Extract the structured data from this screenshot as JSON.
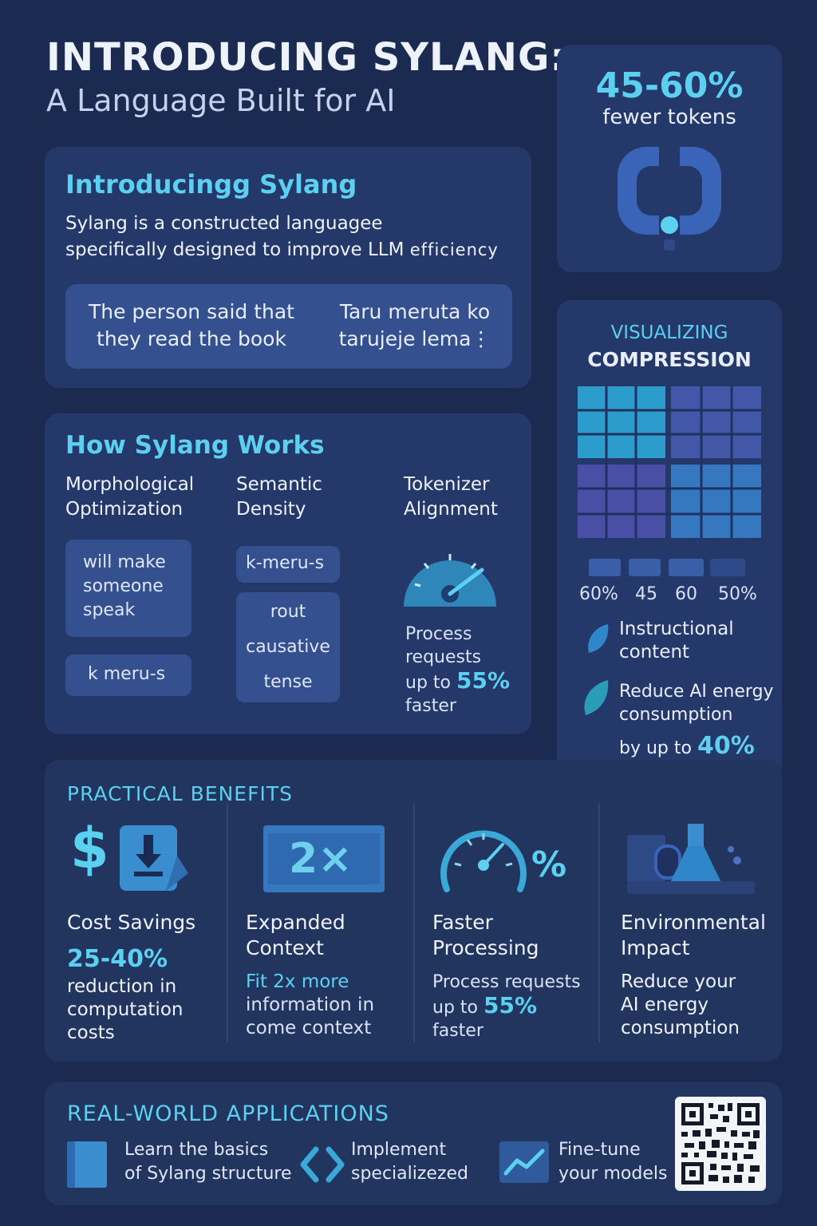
{
  "header": {
    "title": "INTRODUCING SYLANG:",
    "subtitle": "A Language Built for AI"
  },
  "intro": {
    "heading": "Introducingg Sylang",
    "desc_line1": "Sylang is a constructed languagee",
    "desc_line2": "specifically designed to improve LLM",
    "desc_word": "efficiency",
    "example_en_1": "The person said that",
    "example_en_2": "they read the book",
    "example_sy_1": "Taru meruta ko",
    "example_sy_2": "tarujeje lema⋮"
  },
  "tokens": {
    "value": "45-60%",
    "label": "fewer tokens"
  },
  "how": {
    "heading": "How Sylang Works",
    "col1": {
      "title1": "Morphological",
      "title2": "Optimization",
      "chip1_1": "will make",
      "chip1_2": "someone",
      "chip1_3": "speak",
      "chip2": "k meru-s"
    },
    "col2": {
      "title1": "Semantic",
      "title2": "Density",
      "chip1": "k-meru-s",
      "items": [
        "rout",
        "causative",
        "tense"
      ]
    },
    "col3": {
      "title1": "Tokenizer",
      "title2": "Alignment",
      "line1": "Process",
      "line2": "requests",
      "line3": "up to",
      "value": "55%",
      "line4": "faster"
    }
  },
  "visual": {
    "heading1": "VISUALIZING",
    "heading2": "COMPRESSION",
    "pcts": [
      "60%",
      "45",
      "60",
      "50%"
    ],
    "item1_1": "Instructional",
    "item1_2": "content",
    "item2_1": "Reduce AI energy",
    "item2_2": "consumption",
    "item2_3": "by up to",
    "item2_value": "40%"
  },
  "benefits": {
    "heading": "PRACTICAL BENEFITS",
    "cost": {
      "title": "Cost Savings",
      "value": "25-40%",
      "d1": "reduction in",
      "d2": "computation",
      "d3": "costs"
    },
    "context": {
      "title1": "Expanded",
      "title2": "Context",
      "icon_text": "2×",
      "d1": "Fit 2x more",
      "d2": "information in",
      "d3": "come context"
    },
    "faster": {
      "title1": "Faster",
      "title2": "Processing",
      "icon_text": "%",
      "d1": "Process requests",
      "d2": "up to",
      "value": "55%",
      "d3": "faster"
    },
    "env": {
      "title1": "Environmental",
      "title2": "Impact",
      "d1": "Reduce your",
      "d2": "AI energy",
      "d3": "consumption"
    }
  },
  "apps": {
    "heading": "REAL-WORLD APPLICATIONS",
    "a1_1": "Learn the basics",
    "a1_2": "of Sylang structure",
    "a2_1": "Implement",
    "a2_2": "specializezed",
    "a3_1": "Fine-tune",
    "a3_2": "your models"
  },
  "colors": {
    "accent": "#5cd0f0",
    "background": "#1b2a50",
    "panel": "#25386a"
  }
}
